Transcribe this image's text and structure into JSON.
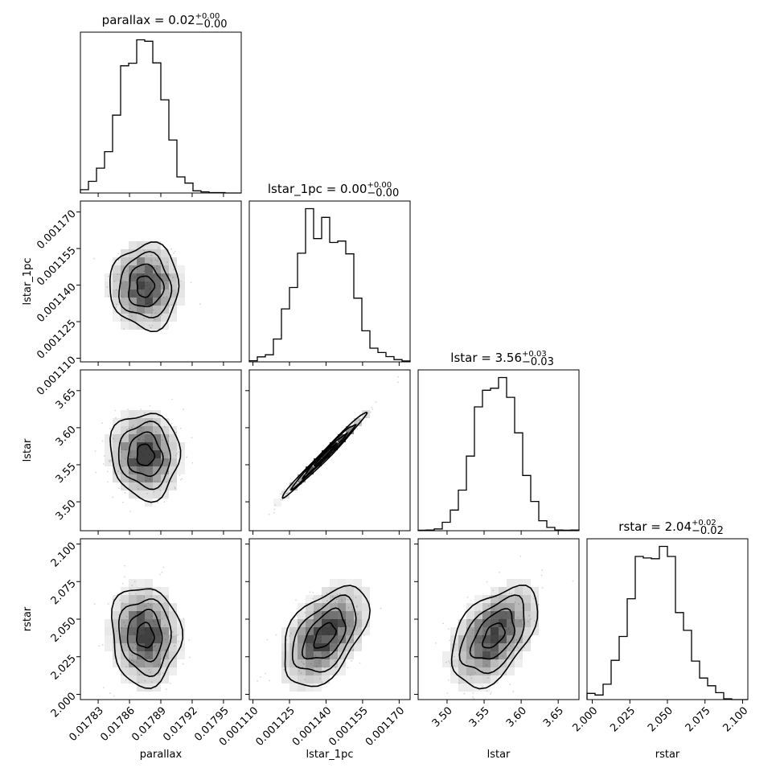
{
  "chart_data": {
    "type": "corner",
    "parameters": [
      "parallax",
      "lstar_1pc",
      "lstar",
      "rstar"
    ],
    "axis_labels": [
      "parallax",
      "lstar_1pc",
      "lstar",
      "rstar"
    ],
    "titles": [
      {
        "param": "parallax",
        "prefix": "parallax = ",
        "median": "0.02",
        "upper": "+0.00",
        "lower": "−0.00"
      },
      {
        "param": "lstar_1pc",
        "prefix": "lstar_1pc = ",
        "median": "0.00",
        "upper": "+0.00",
        "lower": "−0.00"
      },
      {
        "param": "lstar",
        "prefix": "lstar = ",
        "median": "3.56",
        "upper": "+0.03",
        "lower": "−0.03"
      },
      {
        "param": "rstar",
        "prefix": "rstar = ",
        "median": "2.04",
        "upper": "+0.02",
        "lower": "−0.02"
      }
    ],
    "ranges": [
      [
        0.017813,
        0.017967
      ],
      [
        0.0011085,
        0.0011745
      ],
      [
        3.461,
        3.678
      ],
      [
        1.9965,
        2.1035
      ]
    ],
    "ticks": [
      [
        0.01783,
        0.01786,
        0.01789,
        0.01792,
        0.01795
      ],
      [
        0.00111,
        0.001125,
        0.00114,
        0.001155,
        0.00117
      ],
      [
        3.5,
        3.55,
        3.6,
        3.65
      ],
      [
        2.0,
        2.025,
        2.05,
        2.075,
        2.1
      ]
    ],
    "tick_labels": [
      [
        "0.01783",
        "0.01786",
        "0.01789",
        "0.01792",
        "0.01795"
      ],
      [
        "0.001110",
        "0.001125",
        "0.001140",
        "0.001155",
        "0.001170"
      ],
      [
        "3.50",
        "3.55",
        "3.60",
        "3.65"
      ],
      [
        "2.000",
        "2.025",
        "2.050",
        "2.075",
        "2.100"
      ]
    ],
    "histograms": [
      {
        "param": "parallax",
        "counts": [
          0.9,
          3.2,
          6.8,
          11.3,
          21.3,
          34.8,
          35.5,
          41.9,
          41.5,
          35.6,
          25.5,
          14.5,
          4.4,
          2.7,
          0.6,
          0.3,
          0.1,
          0.1,
          0.0,
          0.0
        ]
      },
      {
        "param": "lstar_1pc",
        "counts": [
          0.5,
          2.2,
          3.1,
          10.0,
          23.2,
          32.6,
          47.6,
          67.1,
          54.0,
          63.3,
          52.3,
          52.9,
          47.3,
          27.9,
          13.6,
          6.0,
          4.1,
          2.3,
          1.0,
          0.4
        ]
      },
      {
        "param": "lstar",
        "counts": [
          0.2,
          0.3,
          0.8,
          3.8,
          9.3,
          18.3,
          33.6,
          55.8,
          63.3,
          64.2,
          69.0,
          60.1,
          44.1,
          24.9,
          13.2,
          4.5,
          1.5,
          0.3,
          0.2,
          0.3
        ]
      },
      {
        "param": "rstar",
        "counts": [
          0.8,
          0.6,
          2.0,
          5.1,
          8.2,
          13.1,
          18.6,
          18.4,
          18.3,
          19.9,
          18.6,
          11.3,
          9.0,
          5.0,
          2.8,
          1.8,
          0.9,
          0.1,
          0.0,
          0.0
        ]
      }
    ],
    "contours": [
      {
        "x": "parallax",
        "y": "lstar_1pc",
        "center": [
          0.017875,
          0.0011395
        ],
        "sigma": [
          1.65e-05,
          8.7e-06
        ],
        "rho": 0.0
      },
      {
        "x": "parallax",
        "y": "lstar",
        "center": [
          0.017875,
          3.563
        ],
        "sigma": [
          1.65e-05,
          0.029
        ],
        "rho": -0.05
      },
      {
        "x": "lstar_1pc",
        "y": "lstar",
        "center": [
          0.0011395,
          3.563
        ],
        "sigma": [
          8.7e-06,
          0.029
        ],
        "rho": 0.99
      },
      {
        "x": "parallax",
        "y": "rstar",
        "center": [
          0.017875,
          2.039
        ],
        "sigma": [
          1.65e-05,
          0.0165
        ],
        "rho": -0.05
      },
      {
        "x": "lstar_1pc",
        "y": "rstar",
        "center": [
          0.0011395,
          2.039
        ],
        "sigma": [
          8.7e-06,
          0.0165
        ],
        "rho": 0.48
      },
      {
        "x": "lstar",
        "y": "rstar",
        "center": [
          3.563,
          2.039
        ],
        "sigma": [
          0.029,
          0.0165
        ],
        "rho": 0.48
      }
    ],
    "contour_levels_sigma": [
      0.5,
      1.0,
      1.5,
      2.0
    ],
    "colors": {
      "line": "#000000",
      "density": "#000000",
      "background": "#ffffff"
    }
  }
}
